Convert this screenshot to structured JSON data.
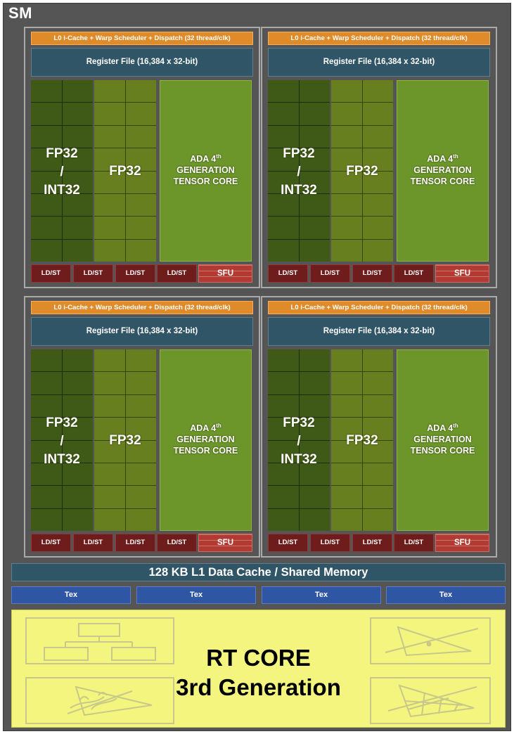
{
  "sm_title": "SM",
  "quadrant": {
    "l0": "L0 i-Cache + Warp Scheduler + Dispatch (32 thread/clk)",
    "register_file": "Register File (16,384 x 32-bit)",
    "fp32_int32": {
      "line1": "FP32",
      "line2": "/",
      "line3": "INT32"
    },
    "fp32": "FP32",
    "tensor": {
      "line1": "ADA 4",
      "sup": "th",
      "line2": "GENERATION",
      "line3": "TENSOR CORE"
    },
    "ldst": "LD/ST",
    "sfu": "SFU"
  },
  "l1_cache": "128 KB L1 Data Cache / Shared Memory",
  "tex": [
    "Tex",
    "Tex",
    "Tex",
    "Tex"
  ],
  "rt_core": {
    "line1": "RT CORE",
    "line2": "3rd Generation"
  },
  "colors": {
    "background": "#555555",
    "l0": "#e08b2a",
    "register_file": "#305566",
    "fp32_int32": "#3f5a17",
    "fp32": "#687f20",
    "tensor": "#6c962a",
    "ldst": "#6e1c1c",
    "sfu": "#b23a32",
    "tex": "#2f55a5",
    "rt_core": "#f4f57e"
  }
}
